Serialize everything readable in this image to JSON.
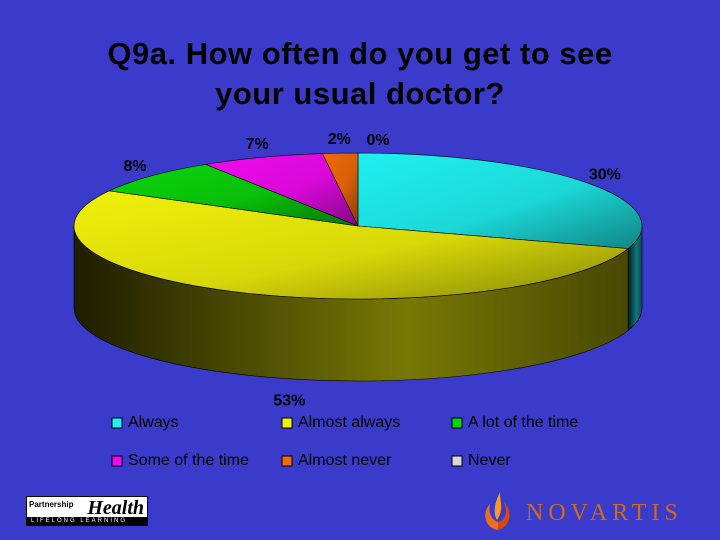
{
  "title": {
    "line1": "Q9a. How often do you get to see",
    "line2": "your usual doctor?"
  },
  "chart_data": {
    "type": "pie",
    "title": "Q9a. How often do you get to see your usual doctor?",
    "style": "3d",
    "slices": [
      {
        "label": "Always",
        "value": 30,
        "display": "30%",
        "color": "#1ff0f0"
      },
      {
        "label": "Almost always",
        "value": 53,
        "display": "53%",
        "color": "#f0f00a"
      },
      {
        "label": "A lot of the time",
        "value": 8,
        "display": "8%",
        "color": "#0ad40a"
      },
      {
        "label": "Some of the time",
        "value": 7,
        "display": "7%",
        "color": "#f00af0"
      },
      {
        "label": "Almost never",
        "value": 2,
        "display": "2%",
        "color": "#f06a0a"
      },
      {
        "label": "Never",
        "value": 0,
        "display": "0%",
        "color": "#d8d8d8"
      }
    ],
    "legend_position": "bottom"
  },
  "logos": {
    "left_line1": "Partnership",
    "left_small": "for",
    "left_line2": "Health",
    "left_line3": "LIFELONG LEARNING",
    "right": "NOVARTIS"
  },
  "colors": {
    "background": "#3a3acb"
  }
}
